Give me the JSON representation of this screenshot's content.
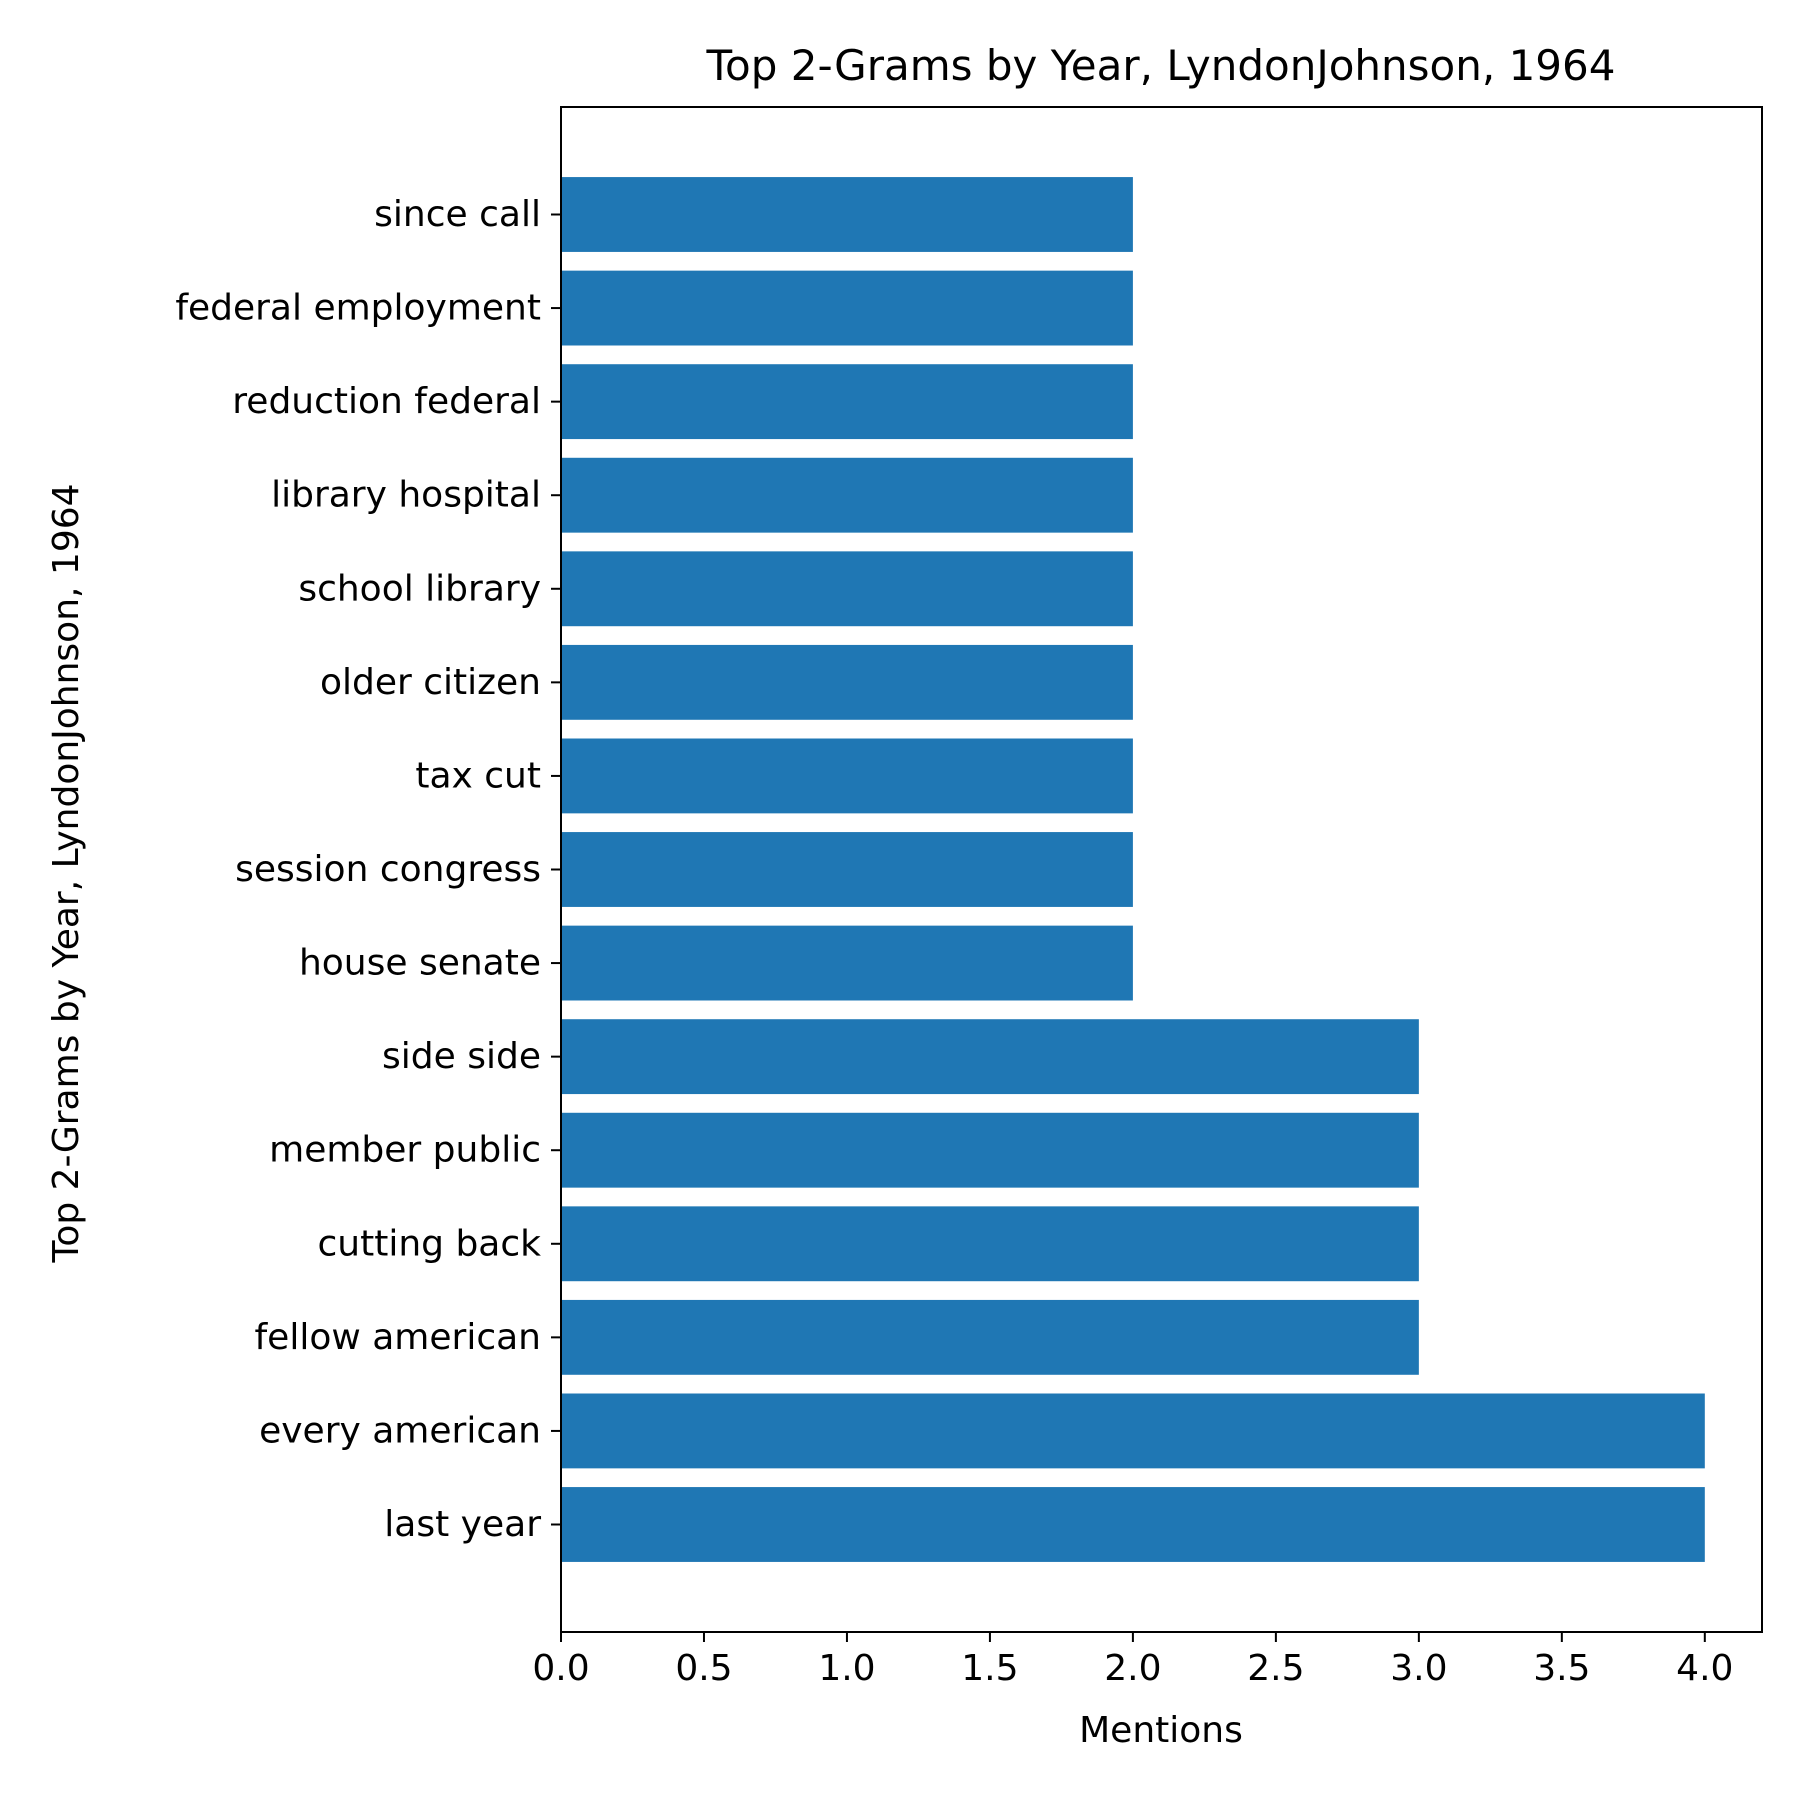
{
  "chart_data": {
    "type": "bar",
    "orientation": "horizontal",
    "title": "Top 2-Grams by Year, LyndonJohnson, 1964",
    "xlabel": "Mentions",
    "ylabel": "Top 2-Grams by Year, LyndonJohnson, 1964",
    "categories": [
      "last year",
      "every american",
      "fellow american",
      "cutting back",
      "member public",
      "side side",
      "house senate",
      "session congress",
      "tax cut",
      "older citizen",
      "school library",
      "library hospital",
      "reduction federal",
      "federal employment",
      "since call"
    ],
    "values": [
      4,
      4,
      3,
      3,
      3,
      3,
      2,
      2,
      2,
      2,
      2,
      2,
      2,
      2,
      2
    ],
    "xlim": [
      0,
      4.2
    ],
    "xticks": [
      "0.0",
      "0.5",
      "1.0",
      "1.5",
      "2.0",
      "2.5",
      "3.0",
      "3.5",
      "4.0"
    ],
    "grid": false,
    "bar_color": "#1f77b4"
  }
}
